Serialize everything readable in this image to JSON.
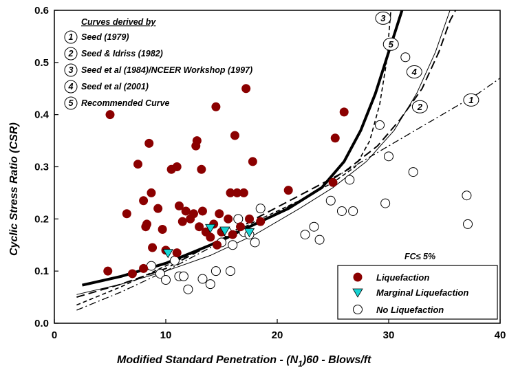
{
  "chart_data": {
    "type": "scatter",
    "title": "",
    "xlabel": "Modified Standard Penetration - (N",
    "xlabel_sub": "1",
    "xlabel_tail": ")60 - Blows/ft",
    "ylabel": "Cyclic Stress Ratio (CSR)",
    "xlim": [
      0,
      40
    ],
    "ylim": [
      0,
      0.6
    ],
    "x_ticks": [
      "0",
      "10",
      "20",
      "30",
      "40"
    ],
    "y_ticks": [
      "0.0",
      "0.1",
      "0.2",
      "0.3",
      "0.4",
      "0.5",
      "0.6"
    ],
    "grid": false,
    "fines_note": "FC≤ 5%",
    "curves_heading": "Curves derived by",
    "curves_legend": [
      {
        "id": "1",
        "label": "Seed (1979)"
      },
      {
        "id": "2",
        "label": "Seed & Idriss (1982)"
      },
      {
        "id": "3",
        "label": "Seed et al (1984)/NCEER Workshop (1997)"
      },
      {
        "id": "4",
        "label": "Seed et al (2001)"
      },
      {
        "id": "5",
        "label": "Recommended Curve"
      }
    ],
    "curves": [
      {
        "id": "1",
        "style": "dashdot",
        "points": [
          [
            2,
            0.025
          ],
          [
            6,
            0.06
          ],
          [
            10,
            0.1
          ],
          [
            14,
            0.145
          ],
          [
            18,
            0.19
          ],
          [
            22,
            0.235
          ],
          [
            26,
            0.29
          ],
          [
            30,
            0.34
          ],
          [
            34,
            0.39
          ],
          [
            38,
            0.44
          ],
          [
            40,
            0.47
          ]
        ],
        "label_at": [
          37.4,
          0.428
        ]
      },
      {
        "id": "2",
        "style": "longdash",
        "points": [
          [
            2,
            0.05
          ],
          [
            6,
            0.075
          ],
          [
            10,
            0.105
          ],
          [
            14,
            0.15
          ],
          [
            18,
            0.2
          ],
          [
            22,
            0.245
          ],
          [
            26,
            0.29
          ],
          [
            29,
            0.34
          ],
          [
            31,
            0.39
          ],
          [
            33,
            0.45
          ],
          [
            34.5,
            0.52
          ],
          [
            35.5,
            0.58
          ],
          [
            36,
            0.6
          ]
        ],
        "label_at": [
          32.8,
          0.415
        ]
      },
      {
        "id": "3",
        "style": "dash",
        "points": [
          [
            2,
            0.035
          ],
          [
            6,
            0.07
          ],
          [
            10,
            0.11
          ],
          [
            14,
            0.15
          ],
          [
            18,
            0.195
          ],
          [
            22,
            0.235
          ],
          [
            25,
            0.27
          ],
          [
            27,
            0.3
          ],
          [
            28.3,
            0.35
          ],
          [
            29.2,
            0.42
          ],
          [
            29.8,
            0.5
          ],
          [
            30.2,
            0.6
          ]
        ],
        "label_at": [
          29.5,
          0.585
        ]
      },
      {
        "id": "4",
        "style": "thin",
        "points": [
          [
            2,
            0.055
          ],
          [
            6,
            0.075
          ],
          [
            10,
            0.1
          ],
          [
            14,
            0.13
          ],
          [
            18,
            0.17
          ],
          [
            22,
            0.22
          ],
          [
            25,
            0.26
          ],
          [
            28,
            0.31
          ],
          [
            30.5,
            0.37
          ],
          [
            32.5,
            0.44
          ],
          [
            34.2,
            0.52
          ],
          [
            35.5,
            0.6
          ]
        ],
        "label_at": [
          32.3,
          0.482
        ]
      },
      {
        "id": "5",
        "style": "thick",
        "points": [
          [
            2.5,
            0.073
          ],
          [
            6,
            0.09
          ],
          [
            10,
            0.115
          ],
          [
            14,
            0.15
          ],
          [
            18,
            0.19
          ],
          [
            21,
            0.22
          ],
          [
            24,
            0.26
          ],
          [
            26,
            0.31
          ],
          [
            27.5,
            0.37
          ],
          [
            28.8,
            0.44
          ],
          [
            30,
            0.52
          ],
          [
            31.2,
            0.6
          ]
        ],
        "label_at": [
          30.2,
          0.535
        ]
      }
    ],
    "series": [
      {
        "name": "Liquefaction",
        "marker": "filled-circle",
        "color": "#8b0000",
        "points": [
          [
            4.8,
            0.1
          ],
          [
            5,
            0.4
          ],
          [
            6.5,
            0.21
          ],
          [
            7,
            0.095
          ],
          [
            7.5,
            0.305
          ],
          [
            8,
            0.105
          ],
          [
            8,
            0.235
          ],
          [
            8.2,
            0.185
          ],
          [
            8.3,
            0.19
          ],
          [
            8.5,
            0.345
          ],
          [
            8.7,
            0.25
          ],
          [
            8.8,
            0.145
          ],
          [
            9.3,
            0.22
          ],
          [
            9.7,
            0.18
          ],
          [
            10,
            0.14
          ],
          [
            10.5,
            0.295
          ],
          [
            11,
            0.3
          ],
          [
            11,
            0.135
          ],
          [
            11.2,
            0.225
          ],
          [
            11.5,
            0.195
          ],
          [
            11.8,
            0.215
          ],
          [
            12.2,
            0.2
          ],
          [
            12.5,
            0.21
          ],
          [
            12.7,
            0.34
          ],
          [
            12.8,
            0.35
          ],
          [
            13,
            0.185
          ],
          [
            13.2,
            0.295
          ],
          [
            13.3,
            0.215
          ],
          [
            13.6,
            0.175
          ],
          [
            14,
            0.165
          ],
          [
            14.3,
            0.19
          ],
          [
            14.5,
            0.415
          ],
          [
            14.6,
            0.15
          ],
          [
            14.8,
            0.21
          ],
          [
            15,
            0.175
          ],
          [
            15.6,
            0.2
          ],
          [
            15.8,
            0.25
          ],
          [
            16,
            0.17
          ],
          [
            16.2,
            0.36
          ],
          [
            16.4,
            0.25
          ],
          [
            16.7,
            0.185
          ],
          [
            17,
            0.25
          ],
          [
            17.2,
            0.45
          ],
          [
            17.5,
            0.2
          ],
          [
            17.8,
            0.31
          ],
          [
            18.5,
            0.195
          ],
          [
            21,
            0.255
          ],
          [
            25,
            0.27
          ],
          [
            25.2,
            0.355
          ],
          [
            26,
            0.405
          ]
        ]
      },
      {
        "name": "Marginal Liquefaction",
        "marker": "triangle",
        "color": "#17d3d3",
        "points": [
          [
            10.2,
            0.135
          ],
          [
            14,
            0.183
          ],
          [
            15.3,
            0.178
          ],
          [
            17.5,
            0.175
          ]
        ]
      },
      {
        "name": "No Liquefaction",
        "marker": "open-circle",
        "color": "#ffffff",
        "points": [
          [
            8.7,
            0.11
          ],
          [
            9.5,
            0.095
          ],
          [
            10,
            0.083
          ],
          [
            10.8,
            0.12
          ],
          [
            11.2,
            0.09
          ],
          [
            11.6,
            0.09
          ],
          [
            12,
            0.065
          ],
          [
            13.3,
            0.085
          ],
          [
            14,
            0.075
          ],
          [
            14.5,
            0.1
          ],
          [
            15,
            0.155
          ],
          [
            15.5,
            0.175
          ],
          [
            15.8,
            0.1
          ],
          [
            16,
            0.15
          ],
          [
            16.5,
            0.2
          ],
          [
            17,
            0.175
          ],
          [
            17.5,
            0.17
          ],
          [
            18,
            0.155
          ],
          [
            18.5,
            0.22
          ],
          [
            22.5,
            0.17
          ],
          [
            23.3,
            0.185
          ],
          [
            23.8,
            0.16
          ],
          [
            24.8,
            0.235
          ],
          [
            25.8,
            0.215
          ],
          [
            26.5,
            0.275
          ],
          [
            26.8,
            0.215
          ],
          [
            29.2,
            0.38
          ],
          [
            29.7,
            0.23
          ],
          [
            30,
            0.32
          ],
          [
            31.5,
            0.51
          ],
          [
            32.2,
            0.29
          ],
          [
            37,
            0.245
          ],
          [
            37.1,
            0.19
          ]
        ]
      }
    ],
    "legend": {
      "placement": "bottom-right",
      "entries": [
        "Liquefaction",
        "Marginal Liquefaction",
        "No Liquefaction"
      ]
    }
  }
}
